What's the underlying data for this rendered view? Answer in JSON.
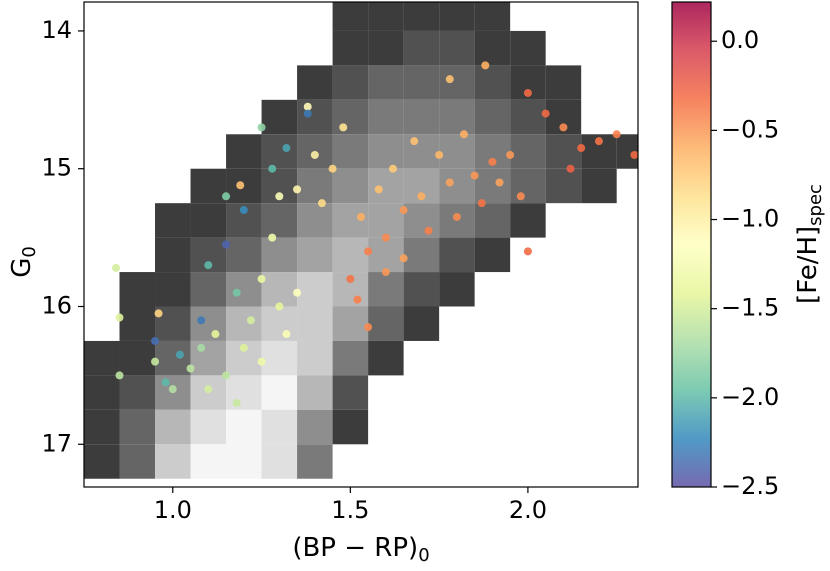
{
  "chart_data": {
    "type": "scatter",
    "xlabel": "(BP − RP)",
    "xlabel_sub": "0",
    "ylabel": "G",
    "ylabel_sub": "0",
    "colorbar_label": "[Fe/H]",
    "colorbar_label_sub": "spec",
    "xlim": [
      0.75,
      2.31
    ],
    "ylim": [
      17.31,
      13.79
    ],
    "xticks": [
      {
        "value": 1.0,
        "label": "1.0"
      },
      {
        "value": 1.5,
        "label": "1.5"
      },
      {
        "value": 2.0,
        "label": "2.0"
      }
    ],
    "yticks": [
      14,
      15,
      16,
      17
    ],
    "clim": [
      -2.5,
      0.22
    ],
    "cticks": [
      {
        "value": 0.0,
        "label": "0.0"
      },
      {
        "value": -0.5,
        "label": "−0.5"
      },
      {
        "value": -1.0,
        "label": "−1.0"
      },
      {
        "value": -1.5,
        "label": "−1.5"
      },
      {
        "value": -2.0,
        "label": "−2.0"
      },
      {
        "value": -2.5,
        "label": "−2.5"
      }
    ],
    "colormap": [
      "#5e4fa2",
      "#3288bd",
      "#66c2a5",
      "#abdda4",
      "#e6f598",
      "#ffffbf",
      "#fee08b",
      "#fdae61",
      "#f46d43",
      "#d53e4f",
      "#9e0142"
    ],
    "density": {
      "xbins": [
        0.75,
        0.85,
        0.95,
        1.05,
        1.15,
        1.25,
        1.35,
        1.45,
        1.55,
        1.65,
        1.75,
        1.85,
        1.95,
        2.05,
        2.15,
        2.25,
        2.35
      ],
      "ybins": [
        13.75,
        14.0,
        14.25,
        14.5,
        14.75,
        15.0,
        15.25,
        15.5,
        15.75,
        16.0,
        16.25,
        16.5,
        16.75,
        17.0,
        17.25
      ],
      "counts": [
        [
          0,
          0,
          0,
          0,
          0,
          0,
          0,
          1,
          1,
          1,
          1,
          1,
          0,
          0,
          0,
          0
        ],
        [
          0,
          0,
          0,
          0,
          0,
          0,
          0,
          1,
          1,
          2,
          2,
          1,
          1,
          0,
          0,
          0
        ],
        [
          0,
          0,
          0,
          0,
          0,
          0,
          1,
          2,
          3,
          3,
          3,
          2,
          1,
          1,
          0,
          0
        ],
        [
          0,
          0,
          0,
          0,
          0,
          1,
          2,
          3,
          4,
          4,
          4,
          3,
          2,
          1,
          0,
          0
        ],
        [
          0,
          0,
          0,
          0,
          1,
          2,
          3,
          4,
          5,
          5,
          5,
          4,
          3,
          2,
          1,
          1
        ],
        [
          0,
          0,
          0,
          1,
          1,
          2,
          4,
          5,
          6,
          6,
          5,
          4,
          3,
          2,
          1,
          0
        ],
        [
          0,
          0,
          1,
          1,
          2,
          3,
          5,
          6,
          6,
          5,
          4,
          3,
          1,
          0,
          0,
          0
        ],
        [
          0,
          0,
          1,
          2,
          3,
          5,
          6,
          7,
          6,
          4,
          2,
          1,
          0,
          0,
          0,
          0
        ],
        [
          0,
          1,
          1,
          3,
          5,
          7,
          8,
          7,
          4,
          2,
          1,
          0,
          0,
          0,
          0,
          0
        ],
        [
          0,
          1,
          2,
          5,
          7,
          8,
          8,
          6,
          3,
          1,
          0,
          0,
          0,
          0,
          0,
          0
        ],
        [
          1,
          1,
          3,
          6,
          8,
          9,
          8,
          4,
          1,
          0,
          0,
          0,
          0,
          0,
          0,
          0
        ],
        [
          1,
          2,
          5,
          8,
          9,
          10,
          7,
          2,
          0,
          0,
          0,
          0,
          0,
          0,
          0,
          0
        ],
        [
          1,
          3,
          7,
          9,
          10,
          9,
          5,
          1,
          0,
          0,
          0,
          0,
          0,
          0,
          0,
          0
        ],
        [
          1,
          3,
          8,
          10,
          10,
          9,
          4,
          0,
          0,
          0,
          0,
          0,
          0,
          0,
          0,
          0
        ]
      ]
    },
    "points": {
      "x": [
        2.3,
        2.25,
        2.2,
        2.15,
        2.12,
        2.1,
        2.05,
        2.0,
        1.98,
        1.95,
        1.92,
        1.9,
        1.88,
        1.87,
        1.85,
        1.82,
        1.8,
        1.78,
        1.75,
        1.72,
        1.7,
        1.68,
        1.65,
        1.62,
        1.6,
        1.58,
        1.55,
        1.53,
        1.5,
        1.52,
        1.55,
        1.6,
        1.65,
        2.0,
        1.78,
        1.45,
        1.48,
        1.42,
        1.4,
        1.35,
        1.38,
        1.3,
        1.28,
        1.25,
        1.3,
        1.22,
        1.2,
        1.15,
        1.18,
        1.1,
        1.05,
        1.12,
        1.25,
        1.32,
        1.35,
        1.0,
        0.95,
        0.85,
        0.84,
        0.85,
        1.08,
        1.38,
        1.32,
        1.28,
        1.2,
        1.15,
        1.1,
        1.18,
        1.08,
        1.02,
        0.98,
        1.25,
        1.15,
        0.95,
        1.19,
        0.96
      ],
      "y": [
        14.9,
        14.75,
        14.8,
        14.85,
        15.0,
        14.7,
        14.6,
        14.45,
        15.2,
        14.9,
        15.1,
        14.95,
        14.25,
        15.25,
        15.05,
        14.75,
        15.35,
        15.1,
        14.9,
        15.45,
        15.2,
        14.8,
        15.3,
        15.0,
        15.5,
        15.15,
        15.6,
        15.35,
        15.8,
        15.95,
        16.15,
        15.75,
        15.65,
        15.6,
        14.35,
        15.0,
        14.7,
        15.25,
        14.9,
        15.15,
        14.55,
        15.2,
        15.5,
        15.8,
        16.0,
        16.1,
        16.3,
        16.5,
        16.7,
        16.6,
        16.45,
        16.2,
        16.4,
        16.2,
        15.9,
        16.6,
        16.4,
        16.5,
        15.72,
        16.08,
        16.3,
        14.6,
        14.85,
        15.0,
        15.3,
        15.55,
        15.7,
        15.9,
        16.1,
        16.35,
        16.55,
        14.7,
        15.2,
        16.25,
        15.12,
        16.05
      ],
      "c": [
        -0.3,
        -0.4,
        -0.35,
        -0.3,
        -0.25,
        -0.45,
        -0.3,
        -0.3,
        -0.45,
        -0.5,
        -0.55,
        -0.4,
        -0.6,
        -0.35,
        -0.5,
        -0.6,
        -0.45,
        -0.55,
        -0.65,
        -0.4,
        -0.6,
        -0.7,
        -0.5,
        -0.75,
        -0.45,
        -0.7,
        -0.4,
        -0.6,
        -0.35,
        -0.4,
        -0.45,
        -0.5,
        -0.55,
        -0.3,
        -0.7,
        -0.8,
        -0.9,
        -0.85,
        -1.0,
        -1.05,
        -1.1,
        -1.2,
        -1.3,
        -1.35,
        -1.4,
        -1.5,
        -1.45,
        -1.6,
        -1.55,
        -1.5,
        -1.6,
        -1.4,
        -1.3,
        -1.2,
        -1.15,
        -1.65,
        -1.55,
        -1.6,
        -1.5,
        -1.45,
        -1.7,
        -2.3,
        -2.1,
        -2.0,
        -2.2,
        -2.4,
        -2.0,
        -1.9,
        -2.3,
        -2.1,
        -2.0,
        -1.8,
        -1.85,
        -2.35,
        -0.7,
        -0.8
      ]
    }
  }
}
